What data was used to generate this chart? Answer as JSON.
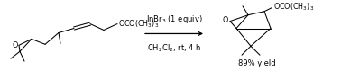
{
  "fig_width": 3.78,
  "fig_height": 0.79,
  "dpi": 100,
  "background_color": "#ffffff",
  "arrow_color": "#000000",
  "text_color": "#000000",
  "reagent_line1": "InBr$_3$ (1 equiv)",
  "reagent_line2": "CH$_2$Cl$_2$, rt, 4 h",
  "yield_text": "89% yield",
  "font_size_reagent": 6.0,
  "font_size_yield": 6.0,
  "font_size_atom": 5.8
}
